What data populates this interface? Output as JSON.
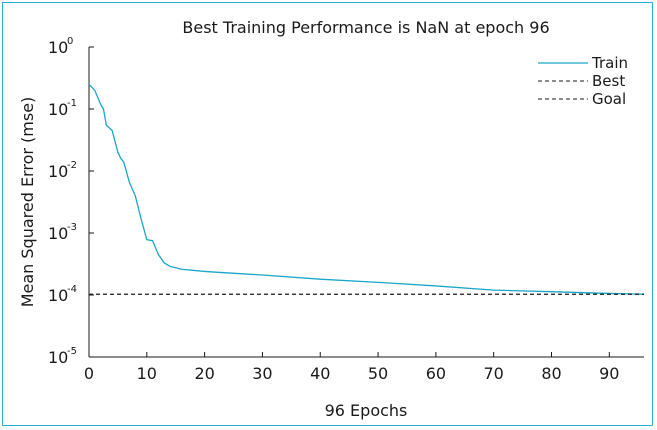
{
  "chart_data": {
    "type": "line",
    "title": "Best Training Performance is NaN at epoch 96",
    "xlabel": "96 Epochs",
    "ylabel": "Mean Squared Error (mse)",
    "xlim": [
      0,
      96
    ],
    "ylim": [
      1e-05,
      1
    ],
    "yscale": "log",
    "x_ticks": [
      "0",
      "10",
      "20",
      "30",
      "40",
      "50",
      "60",
      "70",
      "80",
      "90"
    ],
    "y_ticks": [
      {
        "base": "10",
        "exp": "0"
      },
      {
        "base": "10",
        "exp": "-1"
      },
      {
        "base": "10",
        "exp": "-2"
      },
      {
        "base": "10",
        "exp": "-3"
      },
      {
        "base": "10",
        "exp": "-4"
      },
      {
        "base": "10",
        "exp": "-5"
      }
    ],
    "grid": false,
    "legend_position": "top-right",
    "series": [
      {
        "name": "Train",
        "color": "#1aa6c8",
        "style": "solid",
        "x": [
          0,
          1,
          2,
          2.5,
          3,
          4,
          5,
          5.5,
          6,
          7,
          8,
          9,
          10,
          11,
          12,
          13,
          14,
          16,
          20,
          23,
          30,
          40,
          50,
          60,
          70,
          80,
          90,
          96
        ],
        "y": [
          0.25,
          0.2,
          0.12,
          0.1,
          0.055,
          0.045,
          0.02,
          0.016,
          0.014,
          0.0065,
          0.004,
          0.0017,
          0.00078,
          0.00075,
          0.00045,
          0.00033,
          0.00029,
          0.00026,
          0.00024,
          0.00023,
          0.00021,
          0.00018,
          0.00016,
          0.00014,
          0.00012,
          0.000113,
          0.000106,
          0.000103
        ]
      },
      {
        "name": "Best",
        "color": "#1a1a1a",
        "style": "dashed",
        "x": [
          0,
          96
        ],
        "y": [
          0.000103,
          0.000103
        ]
      },
      {
        "name": "Goal",
        "color": "#1a1a1a",
        "style": "dashed",
        "x": [
          0,
          96
        ],
        "y": [
          0.000103,
          0.000103
        ]
      }
    ]
  }
}
